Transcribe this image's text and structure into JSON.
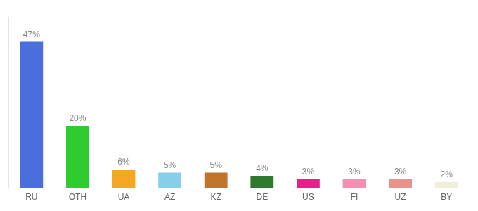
{
  "chart_data": {
    "type": "bar",
    "categories": [
      "RU",
      "OTH",
      "UA",
      "AZ",
      "KZ",
      "DE",
      "US",
      "FI",
      "UZ",
      "BY"
    ],
    "values": [
      47,
      20,
      6,
      5,
      5,
      4,
      3,
      3,
      3,
      2
    ],
    "value_labels": [
      "47%",
      "20%",
      "6%",
      "5%",
      "5%",
      "4%",
      "3%",
      "3%",
      "3%",
      "2%"
    ],
    "colors": [
      "#4a6fdc",
      "#2ecc2e",
      "#f5a623",
      "#87ceeb",
      "#c0732a",
      "#2d7a2d",
      "#e91e8c",
      "#f48fb1",
      "#e8928a",
      "#f0eed8"
    ],
    "ylim": [
      0,
      55
    ],
    "grid": false,
    "data_labels": true,
    "tick_labels": "x"
  }
}
